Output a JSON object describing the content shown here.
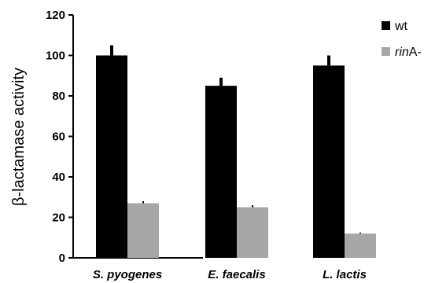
{
  "chart_data": {
    "type": "bar",
    "title": "",
    "xlabel": "",
    "ylabel": "β-lactamase activity",
    "ylim": [
      0,
      120
    ],
    "yticks": [
      0,
      20,
      40,
      60,
      80,
      100,
      120
    ],
    "categories": [
      "S. pyogenes",
      "E. faecalis",
      "L. lactis"
    ],
    "series": [
      {
        "name": "wt",
        "name_prefix": "",
        "name_suffix": "",
        "color": "#000000",
        "values": [
          100,
          85,
          95
        ],
        "errors": [
          5,
          4,
          5
        ]
      },
      {
        "name": "rinA-",
        "name_prefix": "rin",
        "name_suffix": "A-",
        "color": "#a6a6a6",
        "values": [
          27,
          25,
          12
        ],
        "errors": [
          1,
          1,
          0.5
        ]
      }
    ],
    "legend_position": "top-right",
    "grid": false
  }
}
